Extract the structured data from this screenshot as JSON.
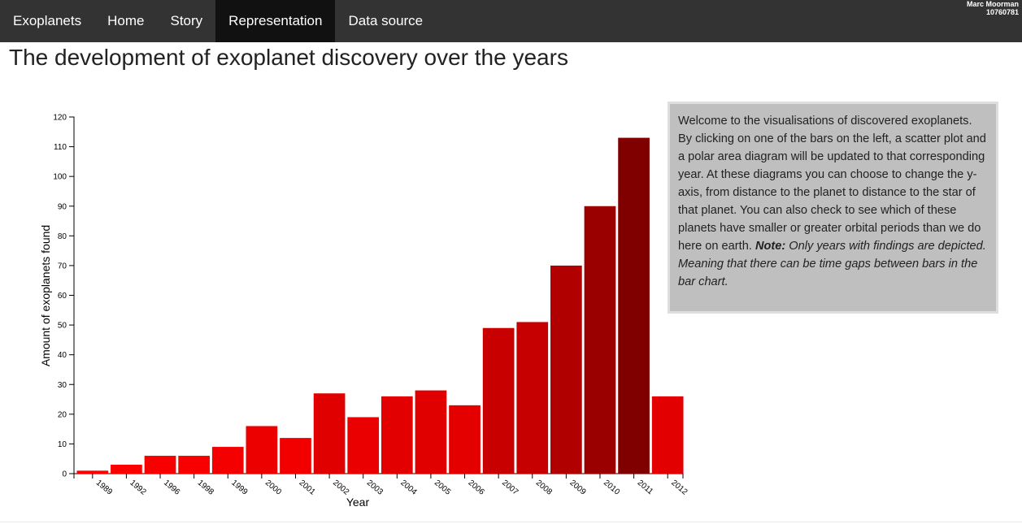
{
  "nav": {
    "items": [
      {
        "label": "Exoplanets",
        "active": false
      },
      {
        "label": "Home",
        "active": false
      },
      {
        "label": "Story",
        "active": false
      },
      {
        "label": "Representation",
        "active": true
      },
      {
        "label": "Data source",
        "active": false
      }
    ],
    "user_name": "Marc Moorman",
    "user_id": "10760781"
  },
  "page": {
    "title": "The development of exoplanet discovery over the years"
  },
  "info": {
    "text": "Welcome to the visualisations of discovered exoplanets. By clicking on one of the bars on the left, a scatter plot and a polar area diagram will be updated to that corresponding year. At these diagrams you can choose to change the y-axis, from distance to the planet to distance to the star of that planet. You can also check to see which of these planets have smaller or greater orbital periods than we do here on earth.",
    "note_label": "Note:",
    "note_text": "Only years with findings are depicted. Meaning that there can be time gaps between bars in the bar chart."
  },
  "chart_data": {
    "type": "bar",
    "categories": [
      "1989",
      "1992",
      "1996",
      "1998",
      "1999",
      "2000",
      "2001",
      "2002",
      "2003",
      "2004",
      "2005",
      "2006",
      "2007",
      "2008",
      "2009",
      "2010",
      "2011",
      "2012"
    ],
    "values": [
      1,
      3,
      6,
      6,
      9,
      16,
      12,
      27,
      19,
      26,
      28,
      23,
      49,
      51,
      70,
      90,
      113,
      26
    ],
    "xlabel": "Year",
    "ylabel": "Amount of exoplanets found",
    "ylim": [
      0,
      120
    ],
    "yticks": [
      0,
      10,
      20,
      30,
      40,
      50,
      60,
      70,
      80,
      90,
      100,
      110,
      120
    ],
    "color_scale": [
      "#ff0000",
      "#800000"
    ],
    "grid": false
  }
}
